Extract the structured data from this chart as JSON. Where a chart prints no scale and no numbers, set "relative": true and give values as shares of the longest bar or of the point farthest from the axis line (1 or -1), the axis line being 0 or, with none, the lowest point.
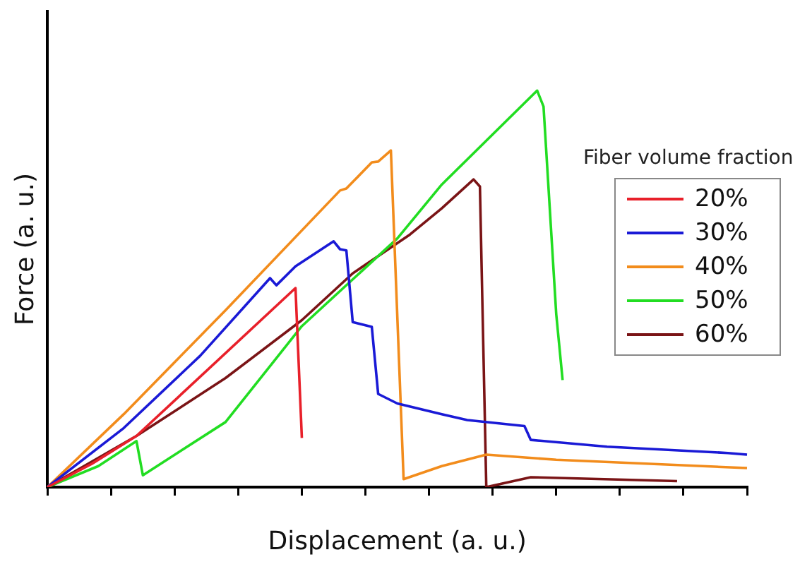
{
  "chart_data": {
    "type": "line",
    "xlabel": "Displacement (a. u.)",
    "ylabel": "Force (a. u.)",
    "legend_title": "Fiber volume fraction",
    "relative": true,
    "grid": false,
    "legend": "right",
    "marker": "none",
    "line_style": "solid",
    "categories": [
      null,
      null,
      null,
      null,
      null,
      null,
      null,
      null,
      null,
      null,
      null,
      null,
      null,
      null,
      null,
      null,
      null,
      null,
      null,
      null,
      null,
      null,
      null,
      null,
      null,
      null,
      null,
      null,
      null,
      null,
      null,
      null,
      null,
      null,
      null,
      null,
      null,
      null,
      null,
      null,
      null,
      null,
      null,
      null,
      null,
      null,
      null,
      null,
      null,
      null,
      null,
      null,
      null,
      null,
      null,
      null,
      null,
      null,
      null,
      null,
      null,
      null,
      null,
      null,
      null,
      null,
      null,
      null,
      null,
      null,
      null,
      null,
      null,
      null,
      null,
      null,
      null,
      null,
      null,
      null,
      null,
      null,
      null,
      null,
      null,
      null,
      null,
      null,
      null,
      null,
      null,
      null,
      null,
      null,
      null,
      null,
      null,
      null,
      null,
      null,
      null,
      null,
      null,
      null,
      null,
      null,
      null,
      null,
      null,
      null,
      null
    ],
    "series": [
      {
        "name": "20%",
        "color": "#e8202a",
        "values": [
          0,
          null,
          null,
          null,
          null,
          null,
          null,
          0.059,
          null,
          null,
          null,
          null,
          null,
          null,
          0.129,
          null,
          null,
          null,
          null,
          null,
          null,
          null,
          null,
          null,
          null,
          null,
          null,
          null,
          null,
          null,
          null,
          null,
          null,
          null,
          null,
          null,
          null,
          null,
          null,
          0.502,
          0.124,
          null,
          null,
          null,
          null,
          null,
          null,
          null,
          null,
          null,
          null,
          null,
          null,
          null,
          null,
          null,
          null,
          null,
          null,
          null,
          null,
          null,
          null,
          null,
          null,
          null,
          null,
          null,
          null,
          null,
          null,
          null,
          null,
          null,
          null,
          null,
          null,
          null,
          null,
          null,
          null,
          null,
          null,
          null,
          null,
          null,
          null,
          null,
          null,
          null,
          null,
          null,
          null,
          null,
          null,
          null,
          null,
          null,
          null,
          null,
          null,
          null,
          null,
          null,
          null,
          null,
          null,
          null,
          null,
          null,
          null
        ]
      },
      {
        "name": "30%",
        "color": "#1a1ad6",
        "values": [
          0,
          null,
          null,
          null,
          null,
          null,
          null,
          null,
          null,
          null,
          null,
          null,
          0.149,
          null,
          null,
          null,
          null,
          null,
          null,
          null,
          null,
          null,
          null,
          null,
          0.331,
          null,
          null,
          null,
          null,
          null,
          null,
          null,
          null,
          null,
          null,
          0.527,
          0.509,
          null,
          null,
          0.557,
          null,
          null,
          null,
          null,
          null,
          0.62,
          0.6,
          0.597,
          0.416,
          null,
          null,
          0.404,
          0.235,
          null,
          null,
          0.211,
          null,
          null,
          null,
          null,
          null,
          null,
          0.184,
          null,
          null,
          null,
          0.169,
          null,
          null,
          null,
          null,
          null,
          null,
          null,
          null,
          0.154,
          0.119,
          null,
          null,
          null,
          null,
          null,
          null,
          null,
          null,
          null,
          null,
          null,
          0.102,
          null,
          null,
          null,
          null,
          null,
          null,
          null,
          null,
          null,
          null,
          null,
          null,
          null,
          null,
          null,
          null,
          null,
          null,
          0.086,
          null,
          null,
          0.082
        ]
      },
      {
        "name": "40%",
        "color": "#f28c1c",
        "values": [
          0,
          null,
          null,
          null,
          null,
          null,
          null,
          null,
          null,
          null,
          null,
          null,
          0.184,
          null,
          null,
          null,
          null,
          null,
          null,
          null,
          null,
          null,
          null,
          null,
          null,
          null,
          null,
          null,
          0.446,
          null,
          null,
          null,
          null,
          null,
          null,
          null,
          null,
          null,
          null,
          null,
          null,
          null,
          null,
          null,
          null,
          null,
          0.748,
          0.753,
          null,
          null,
          null,
          0.819,
          0.821,
          null,
          0.849,
          null,
          0.02,
          null,
          null,
          null,
          null,
          null,
          0.053,
          null,
          null,
          null,
          null,
          null,
          null,
          0.082,
          null,
          null,
          null,
          null,
          null,
          null,
          null,
          null,
          null,
          null,
          0.069,
          null,
          null,
          null,
          null,
          null,
          null,
          null,
          null,
          null,
          null,
          null,
          null,
          null,
          null,
          null,
          null,
          null,
          null,
          null,
          null,
          null,
          null,
          null,
          null,
          null,
          null,
          null,
          null,
          null,
          0.048
        ]
      },
      {
        "name": "50%",
        "color": "#22dd22",
        "values": [
          0,
          null,
          null,
          null,
          null,
          null,
          null,
          null,
          0.053,
          null,
          null,
          null,
          null,
          null,
          0.116,
          0.03,
          null,
          null,
          null,
          null,
          null,
          null,
          null,
          null,
          null,
          null,
          null,
          null,
          0.164,
          null,
          null,
          null,
          null,
          null,
          null,
          null,
          null,
          null,
          null,
          null,
          0.406,
          null,
          null,
          null,
          null,
          null,
          null,
          null,
          null,
          null,
          null,
          null,
          null,
          null,
          null,
          0.627,
          null,
          null,
          null,
          null,
          null,
          null,
          0.763,
          null,
          null,
          null,
          null,
          null,
          null,
          null,
          null,
          null,
          null,
          null,
          null,
          null,
          null,
          1,
          0.96,
          null,
          0.436,
          0.27,
          null,
          null,
          null,
          null,
          null,
          null,
          null,
          null,
          null,
          null,
          null,
          null,
          null,
          null,
          null,
          null,
          null,
          null,
          null,
          null,
          null,
          null,
          null,
          null,
          null,
          null,
          null,
          null,
          null
        ]
      },
      {
        "name": "60%",
        "color": "#7a1416",
        "values": [
          0,
          null,
          null,
          null,
          null,
          null,
          null,
          null,
          null,
          null,
          null,
          null,
          null,
          null,
          0.129,
          null,
          null,
          null,
          null,
          null,
          null,
          null,
          null,
          null,
          null,
          null,
          null,
          null,
          0.275,
          null,
          null,
          null,
          null,
          null,
          null,
          null,
          null,
          null,
          null,
          null,
          0.421,
          null,
          null,
          null,
          null,
          null,
          null,
          null,
          0.539,
          null,
          null,
          null,
          null,
          null,
          null,
          null,
          null,
          0.637,
          null,
          null,
          null,
          null,
          0.703,
          null,
          null,
          null,
          null,
          0.776,
          0.758,
          0,
          null,
          null,
          null,
          null,
          null,
          null,
          0.025,
          null,
          null,
          null,
          null,
          null,
          null,
          null,
          null,
          null,
          null,
          null,
          null,
          null,
          null,
          null,
          null,
          null,
          null,
          null,
          null,
          null,
          null,
          0.015,
          null,
          null,
          null,
          null,
          null,
          null,
          null,
          null,
          null,
          null,
          null
        ]
      }
    ]
  }
}
